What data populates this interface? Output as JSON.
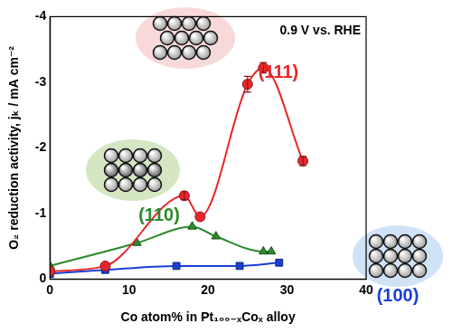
{
  "chart_data": {
    "type": "scatter",
    "x_label": "Co atom% in Pt₁₀₀₋ₓCoₓ alloy",
    "y_label": "O₂ reduction activity, jₖ / mA cm⁻²",
    "annotations": [
      "0.9 V vs. RHE"
    ],
    "xlim": [
      0,
      40
    ],
    "xticks": [
      0,
      10,
      20,
      30,
      40
    ],
    "ylim": [
      0,
      -4
    ],
    "yticks": [
      0,
      -1,
      -2,
      -3,
      -4
    ],
    "grid": false,
    "series": [
      {
        "name": "(111)",
        "color": "#e8262b",
        "marker": "circle",
        "line_style": "solid",
        "x": [
          0,
          7,
          17,
          19,
          25,
          27,
          32
        ],
        "values": [
          -0.12,
          -0.2,
          -1.27,
          -0.95,
          -2.97,
          -3.22,
          -1.8
        ],
        "errors": [
          null,
          null,
          0.06,
          null,
          0.12,
          0.08,
          0.07
        ]
      },
      {
        "name": "(110)",
        "color": "#2a8a2a",
        "marker": "triangle",
        "line_style": "solid",
        "x": [
          0,
          11,
          18,
          21,
          27,
          28
        ],
        "values": [
          -0.2,
          -0.55,
          -0.8,
          -0.65,
          -0.42,
          -0.42
        ]
      },
      {
        "name": "(100)",
        "color": "#1a3fd6",
        "marker": "square",
        "line_style": "solid",
        "x": [
          0,
          7,
          16,
          24,
          29
        ],
        "values": [
          -0.08,
          -0.14,
          -0.2,
          -0.2,
          -0.25
        ]
      }
    ]
  }
}
